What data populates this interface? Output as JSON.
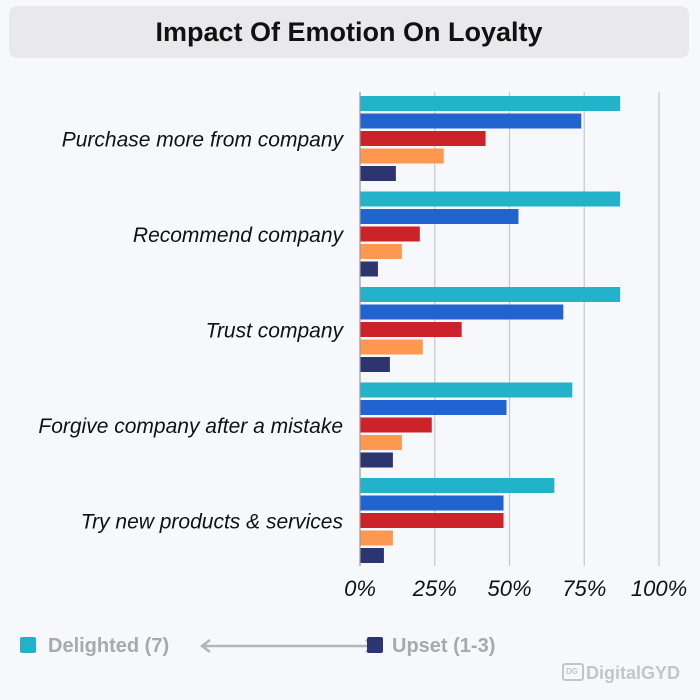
{
  "chart_data": {
    "type": "bar",
    "orientation": "horizontal",
    "title": "Impact Of Emotion On Loyalty",
    "categories": [
      "Purchase more from company",
      "Recommend company",
      "Trust company",
      "Forgive company after a mistake",
      "Try new products & services"
    ],
    "series": [
      {
        "values": [
          87,
          87,
          87,
          71,
          65
        ],
        "color": "#22b3cb"
      },
      {
        "values": [
          74,
          53,
          68,
          49,
          48
        ],
        "color": "#2163cf"
      },
      {
        "values": [
          42,
          20,
          34,
          24,
          48
        ],
        "color": "#cc2229"
      },
      {
        "values": [
          28,
          14,
          21,
          14,
          11
        ],
        "color": "#fe9750"
      },
      {
        "values": [
          12,
          6,
          10,
          11,
          8
        ],
        "color": "#2d3571"
      }
    ],
    "xlim": [
      0,
      100
    ],
    "xticks": [
      "0%",
      "25%",
      "50%",
      "75%",
      "100%"
    ],
    "grid": true,
    "legend": {
      "position": "bottom-left",
      "start_label": "Delighted (7)",
      "end_label": "Upset (1-3)",
      "start_color": "#22b3cb",
      "end_color": "#2d3571"
    }
  },
  "branding": {
    "logo_text": "DigitalGYD"
  }
}
